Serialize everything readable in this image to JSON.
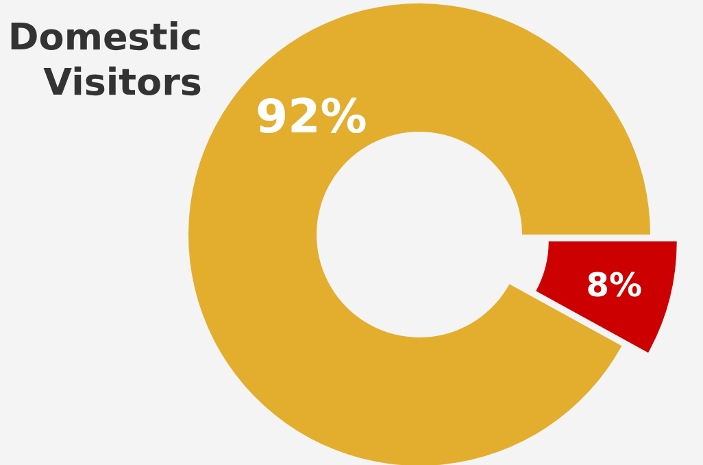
{
  "chart_data": {
    "type": "donut",
    "title": "Domestic Visitors",
    "categories": [
      null,
      null
    ],
    "values": [
      92,
      8
    ],
    "colors": [
      "#e3ad2e",
      "#cc0000"
    ],
    "value_labels": [
      "92%",
      "8%"
    ]
  }
}
